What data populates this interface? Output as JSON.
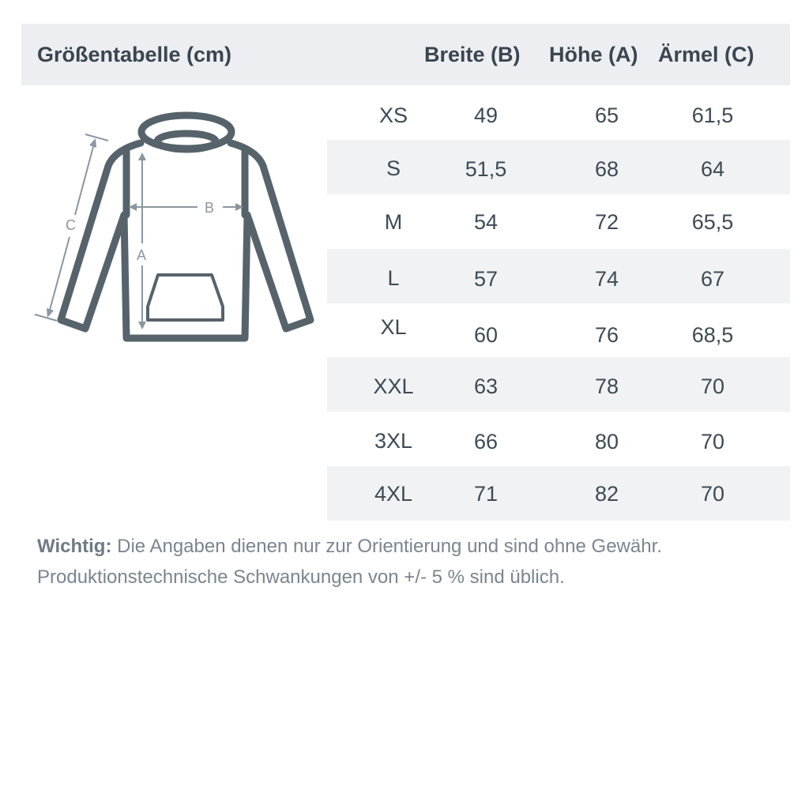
{
  "header": {
    "title": "Größentabelle (cm)",
    "col_breite": "Breite (B)",
    "col_hoehe": "Höhe (A)",
    "col_aermel": "Ärmel (C)"
  },
  "diagram": {
    "label_a": "A",
    "label_b": "B",
    "label_c": "C",
    "icon": "hoodie-icon",
    "color": "#56636b"
  },
  "rows": [
    {
      "size": "XS",
      "breite": "49",
      "hoehe": "65",
      "aermel": "61,5"
    },
    {
      "size": "S",
      "breite": "51,5",
      "hoehe": "68",
      "aermel": "64"
    },
    {
      "size": "M",
      "breite": "54",
      "hoehe": "72",
      "aermel": "65,5"
    },
    {
      "size": "L",
      "breite": "57",
      "hoehe": "74",
      "aermel": "67"
    },
    {
      "size": "XL",
      "breite": "60",
      "hoehe": "76",
      "aermel": "68,5"
    },
    {
      "size": "XXL",
      "breite": "63",
      "hoehe": "78",
      "aermel": "70"
    },
    {
      "size": "3XL",
      "breite": "66",
      "hoehe": "80",
      "aermel": "70"
    },
    {
      "size": "4XL",
      "breite": "71",
      "hoehe": "82",
      "aermel": "70"
    }
  ],
  "note": {
    "bold": "Wichtig:",
    "line1": " Die Angaben dienen nur zur Orientierung und sind ohne Gewähr.",
    "line2": "Produktionstechnische Schwankungen von +/- 5 % sind üblich."
  }
}
